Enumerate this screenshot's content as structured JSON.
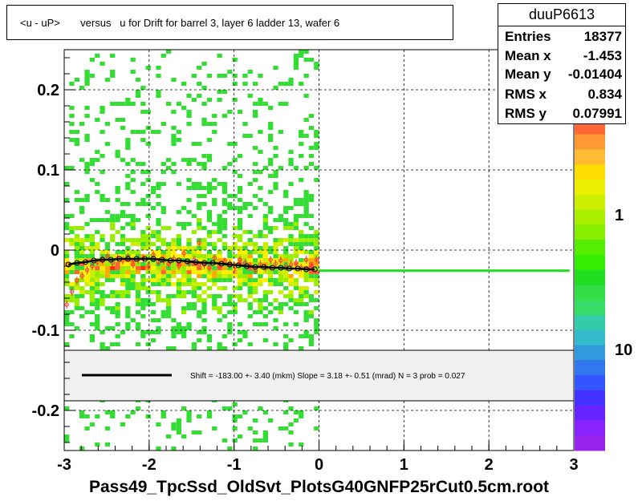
{
  "title": "<u - uP>       versus   u for Drift for barrel 3, layer 6 ladder 13, wafer 6",
  "stats": {
    "name": "duuP6613",
    "rows": [
      {
        "label": "Entries",
        "value": "18377"
      },
      {
        "label": "Mean x",
        "value": "-1.453"
      },
      {
        "label": "Mean y",
        "value": "-0.01404"
      },
      {
        "label": "RMS x",
        "value": "0.834"
      },
      {
        "label": "RMS y",
        "value": "0.07991"
      }
    ]
  },
  "fit_legend": {
    "text": "Shift =  -183.00 +- 3.40 (mkm) Slope =     3.18 +- 0.51 (mrad)  N = 3 prob = 0.027"
  },
  "footer": "Pass49_TpcSsd_OldSvt_PlotsG40GNFP25rCut0.5cm.root",
  "colors": {
    "fit_line": "#000000",
    "extrapolation": "#22dd22",
    "points": "#ff3333",
    "profile": "#000000",
    "legend_bg": "#f0f0f0"
  },
  "chart_data": {
    "type": "heatmap",
    "xlim": [
      -3,
      3
    ],
    "ylim": [
      -0.25,
      0.25
    ],
    "xticks": [
      "-3",
      "-2",
      "-1",
      "0",
      "1",
      "2",
      "3"
    ],
    "yticks": [
      "-0.2",
      "-0.1",
      "0",
      "0.1",
      "0.2"
    ],
    "grid": true,
    "zscale": "log",
    "colorbar_labels": [
      "1",
      "10"
    ],
    "profile": {
      "x": [
        -2.95,
        -2.85,
        -2.75,
        -2.65,
        -2.55,
        -2.45,
        -2.35,
        -2.25,
        -2.15,
        -2.05,
        -1.95,
        -1.85,
        -1.75,
        -1.65,
        -1.55,
        -1.45,
        -1.35,
        -1.25,
        -1.15,
        -1.05,
        -0.95,
        -0.85,
        -0.75,
        -0.65,
        -0.55,
        -0.45,
        -0.35,
        -0.25,
        -0.15,
        -0.05
      ],
      "y": [
        -0.018,
        -0.016,
        -0.015,
        -0.013,
        -0.012,
        -0.012,
        -0.011,
        -0.011,
        -0.011,
        -0.011,
        -0.011,
        -0.012,
        -0.013,
        -0.013,
        -0.014,
        -0.015,
        -0.016,
        -0.016,
        -0.017,
        -0.018,
        -0.019,
        -0.02,
        -0.021,
        -0.021,
        -0.022,
        -0.022,
        -0.023,
        -0.023,
        -0.024,
        -0.024
      ]
    },
    "points": {
      "x": [
        -2.97,
        -2.91,
        -2.85,
        -2.79,
        -2.73,
        -2.67,
        -2.61,
        -2.55,
        -2.49,
        -2.43,
        -2.37,
        -2.31,
        -2.25,
        -2.19,
        -2.13,
        -2.07,
        -2.01,
        -1.95,
        -1.89,
        -1.83,
        -1.77,
        -1.71,
        -1.65,
        -1.59,
        -1.53,
        -1.47,
        -1.41,
        -1.35,
        -1.29,
        -1.23,
        -1.17,
        -1.11,
        -1.05,
        -0.99,
        -0.93,
        -0.87,
        -0.81,
        -0.75,
        -0.69,
        -0.63,
        -0.57,
        -0.51,
        -0.45,
        -0.39,
        -0.33,
        -0.27,
        -0.21,
        -0.15,
        -0.09,
        -0.03
      ],
      "y": [
        -0.068,
        -0.052,
        -0.038,
        -0.032,
        -0.025,
        -0.02,
        -0.015,
        -0.012,
        -0.008,
        -0.016,
        -0.01,
        -0.013,
        -0.009,
        -0.018,
        -0.012,
        -0.011,
        -0.02,
        -0.006,
        -0.015,
        -0.013,
        -0.017,
        -0.011,
        -0.02,
        -0.004,
        -0.016,
        -0.012,
        0.009,
        -0.018,
        -0.022,
        -0.01,
        -0.02,
        -0.014,
        -0.017,
        -0.021,
        -0.012,
        -0.016,
        -0.02,
        -0.025,
        -0.018,
        -0.022,
        -0.012,
        -0.017,
        -0.013,
        -0.021,
        -0.018,
        -0.016,
        -0.022,
        -0.012,
        -0.02,
        -0.012
      ]
    },
    "fit": {
      "x": [
        0,
        3
      ],
      "y": [
        -0.0256,
        -0.0256
      ]
    }
  }
}
